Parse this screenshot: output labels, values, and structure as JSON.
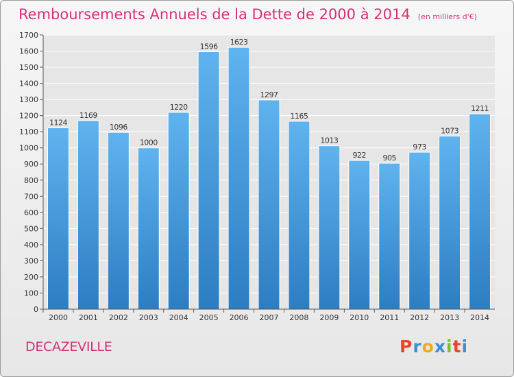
{
  "header": {
    "title": "Remboursements Annuels de la Dette de 2000 à 2014",
    "subtitle": "(en milliers d'€)"
  },
  "footer": {
    "commune": "DECAZEVILLE",
    "logo_letters": [
      "P",
      "r",
      "o",
      "x",
      "i",
      "t",
      "i"
    ],
    "logo_colors": [
      "#e8432b",
      "#3a8fd6",
      "#f2a81d",
      "#3a8fd6",
      "#7cbf2e",
      "#e8432b",
      "#3a8fd6"
    ]
  },
  "colors": {
    "bar_top": "#5fb3ee",
    "bar_bottom": "#2d7dc2",
    "title": "#d5307a",
    "grid": "#ffffff",
    "axis": "#555555"
  },
  "chart_data": {
    "type": "bar",
    "categories": [
      "2000",
      "2001",
      "2002",
      "2003",
      "2004",
      "2005",
      "2006",
      "2007",
      "2008",
      "2009",
      "2010",
      "2011",
      "2012",
      "2013",
      "2014"
    ],
    "values": [
      1124,
      1169,
      1096,
      1000,
      1220,
      1596,
      1623,
      1297,
      1165,
      1013,
      922,
      905,
      973,
      1073,
      1211
    ],
    "data_labels": [
      "1124",
      "1169",
      "1096",
      "1000",
      "1220",
      "1596",
      "1623",
      "1297",
      "1165",
      "1013",
      "922",
      "905",
      "973",
      "1073",
      "1211"
    ],
    "ylim": [
      0,
      1700
    ],
    "yticks": [
      "0",
      "100",
      "200",
      "300",
      "400",
      "500",
      "600",
      "700",
      "800",
      "900",
      "1000",
      "1100",
      "1200",
      "1300",
      "1400",
      "1500",
      "1600",
      "1700"
    ],
    "grid": true,
    "legend": "none"
  }
}
